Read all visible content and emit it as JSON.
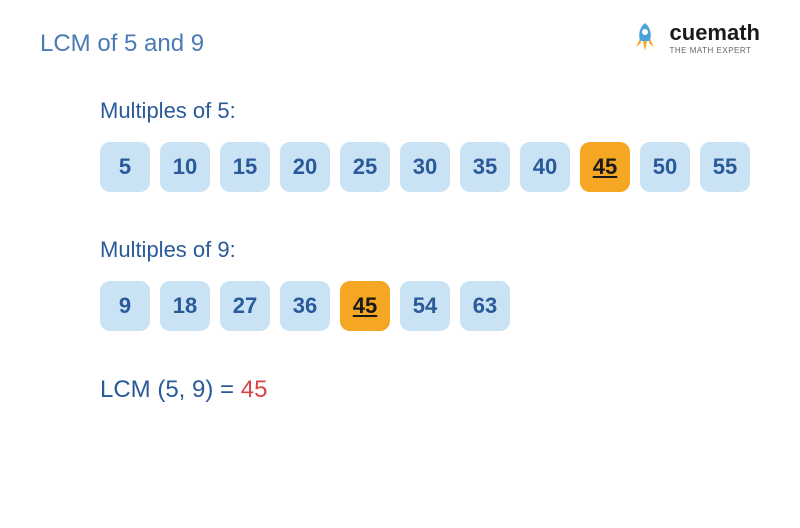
{
  "title": "LCM of 5 and 9",
  "logo": {
    "brand": "cuemath",
    "tagline": "THE MATH EXPERT"
  },
  "section1": {
    "label": "Multiples of 5:",
    "values": [
      5,
      10,
      15,
      20,
      25,
      30,
      35,
      40,
      45,
      50,
      55
    ],
    "highlight_index": 8
  },
  "section2": {
    "label": "Multiples of 9:",
    "values": [
      9,
      18,
      27,
      36,
      45,
      54,
      63
    ],
    "highlight_index": 4
  },
  "result": {
    "label": "LCM (5, 9) = ",
    "value": "45"
  },
  "colors": {
    "title": "#4a7bb5",
    "label": "#2a5a9a",
    "box_bg": "#c9e3f5",
    "box_text": "#2a5a9a",
    "highlight_bg": "#f5a623",
    "highlight_text": "#1a1a1a",
    "result_value": "#d84545",
    "background": "#ffffff"
  },
  "box_style": {
    "border_radius": 10,
    "height": 50,
    "font_size": 22
  }
}
